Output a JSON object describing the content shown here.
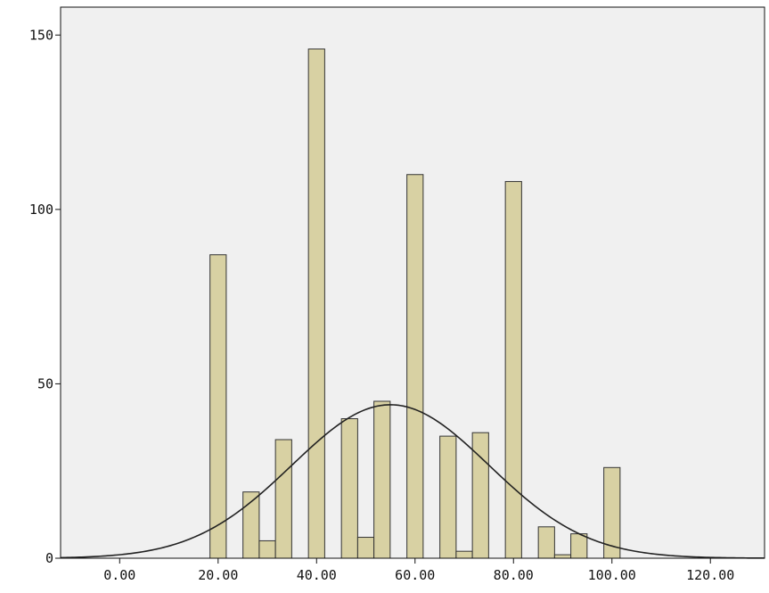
{
  "chart_data": {
    "type": "bar",
    "title": "",
    "xlabel": "",
    "ylabel": "",
    "xlim": [
      -12,
      131
    ],
    "ylim": [
      0,
      158
    ],
    "x_ticks": [
      0,
      20,
      40,
      60,
      80,
      100,
      120
    ],
    "x_tick_labels": [
      "0.00",
      "20.00",
      "40.00",
      "60.00",
      "80.00",
      "100.00",
      "120.00"
    ],
    "y_ticks": [
      0,
      50,
      100,
      150
    ],
    "y_tick_labels": [
      "0",
      "50",
      "100",
      "150"
    ],
    "bin_width": 3.3,
    "bins": [
      {
        "x": 20.0,
        "count": 87
      },
      {
        "x": 26.7,
        "count": 19
      },
      {
        "x": 30.0,
        "count": 5
      },
      {
        "x": 33.3,
        "count": 34
      },
      {
        "x": 40.0,
        "count": 146
      },
      {
        "x": 46.7,
        "count": 40
      },
      {
        "x": 50.0,
        "count": 6
      },
      {
        "x": 53.3,
        "count": 45
      },
      {
        "x": 60.0,
        "count": 110
      },
      {
        "x": 66.7,
        "count": 35
      },
      {
        "x": 70.0,
        "count": 2
      },
      {
        "x": 73.3,
        "count": 36
      },
      {
        "x": 80.0,
        "count": 108
      },
      {
        "x": 86.7,
        "count": 9
      },
      {
        "x": 90.0,
        "count": 1
      },
      {
        "x": 93.3,
        "count": 7
      },
      {
        "x": 100.0,
        "count": 26
      }
    ],
    "normal_curve": {
      "mean": 55.0,
      "sd": 20.0,
      "peak": 44
    },
    "grid": false,
    "legend": "none",
    "colors": {
      "plot_background": "#f0f0f0",
      "bar_fill": "#d8d1a3",
      "bar_stroke": "#333333",
      "curve": "#222222",
      "axis": "#111111"
    }
  }
}
